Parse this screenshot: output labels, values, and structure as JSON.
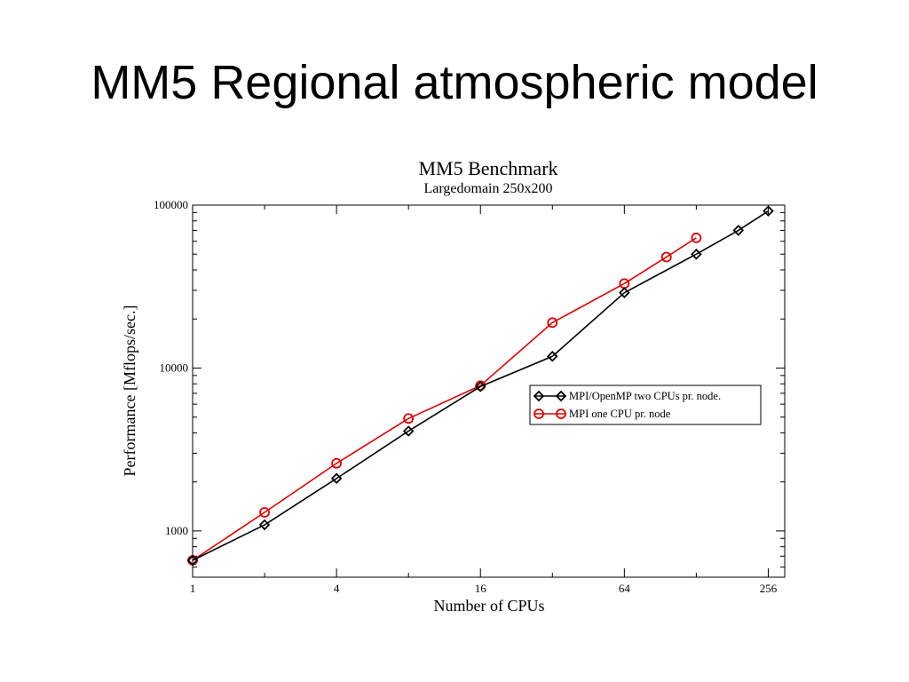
{
  "slide": {
    "title": "MM5 Regional atmospheric model"
  },
  "chart_data": {
    "type": "line",
    "title": "MM5 Benchmark",
    "subtitle": "Largedomain 250x200",
    "xlabel": "Number of CPUs",
    "ylabel": "Performance [Mflops/sec.]",
    "x_scale": "log2",
    "y_scale": "log10",
    "xlim": [
      1,
      300
    ],
    "ylim": [
      520,
      100000
    ],
    "x_ticks": [
      1,
      4,
      16,
      64,
      256
    ],
    "x_tick_labels": [
      "1",
      "4",
      "16",
      "64",
      "256"
    ],
    "y_ticks": [
      1000,
      10000,
      100000
    ],
    "y_tick_labels": [
      "1000",
      "10000",
      "100000"
    ],
    "grid": false,
    "legend_position": "right, middle",
    "series": [
      {
        "name": "MPI/OpenMP two CPUs pr. node.",
        "color": "#000000",
        "marker": "diamond",
        "x": [
          1,
          2,
          4,
          8,
          16,
          32,
          64,
          128,
          192,
          256
        ],
        "y": [
          660,
          1090,
          2100,
          4100,
          7700,
          11800,
          29000,
          50000,
          70000,
          92000
        ]
      },
      {
        "name": "MPI one CPU pr. node",
        "color": "#e00000",
        "marker": "circle",
        "x": [
          1,
          2,
          4,
          8,
          16,
          32,
          64,
          96,
          128
        ],
        "y": [
          660,
          1300,
          2600,
          4900,
          7800,
          19000,
          33000,
          48000,
          63000
        ]
      }
    ]
  }
}
